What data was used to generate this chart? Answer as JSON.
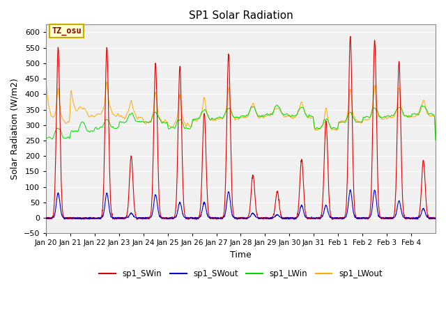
{
  "title": "SP1 Solar Radiation",
  "xlabel": "Time",
  "ylabel": "Solar Radiation (W/m2)",
  "ylim": [
    -50,
    625
  ],
  "yticks": [
    -50,
    0,
    50,
    100,
    150,
    200,
    250,
    300,
    350,
    400,
    450,
    500,
    550,
    600
  ],
  "tz_label": "TZ_osu",
  "fig_bg_color": "#ffffff",
  "plot_bg_color": "#f0f0f0",
  "grid_color": "#ffffff",
  "series_colors": {
    "SWin": "#dd0000",
    "SWout": "#0000cc",
    "LWin": "#00dd00",
    "LWout": "#ffaa00"
  },
  "series_labels": [
    "sp1_SWin",
    "sp1_SWout",
    "sp1_LWin",
    "sp1_LWout"
  ],
  "x_tick_labels": [
    "Jan 20",
    "Jan 21",
    "Jan 22",
    "Jan 23",
    "Jan 24",
    "Jan 25",
    "Jan 26",
    "Jan 27",
    "Jan 28",
    "Jan 29",
    "Jan 30",
    "Jan 31",
    "Feb 1",
    "Feb 2",
    "Feb 3",
    "Feb 4"
  ],
  "n_days": 16,
  "pts_per_day": 144,
  "SWin_peaks": [
    550,
    0,
    550,
    200,
    500,
    490,
    340,
    530,
    140,
    85,
    190,
    315,
    585,
    575,
    505,
    185
  ],
  "SWout_peaks": [
    80,
    0,
    80,
    15,
    75,
    50,
    50,
    85,
    15,
    10,
    40,
    40,
    90,
    90,
    55,
    30
  ],
  "LWin_day_base": [
    260,
    280,
    290,
    310,
    310,
    290,
    320,
    325,
    330,
    335,
    330,
    290,
    310,
    325,
    330,
    335
  ],
  "LWout_day_base": [
    310,
    330,
    335,
    325,
    310,
    300,
    315,
    320,
    325,
    330,
    325,
    285,
    310,
    320,
    325,
    330
  ]
}
